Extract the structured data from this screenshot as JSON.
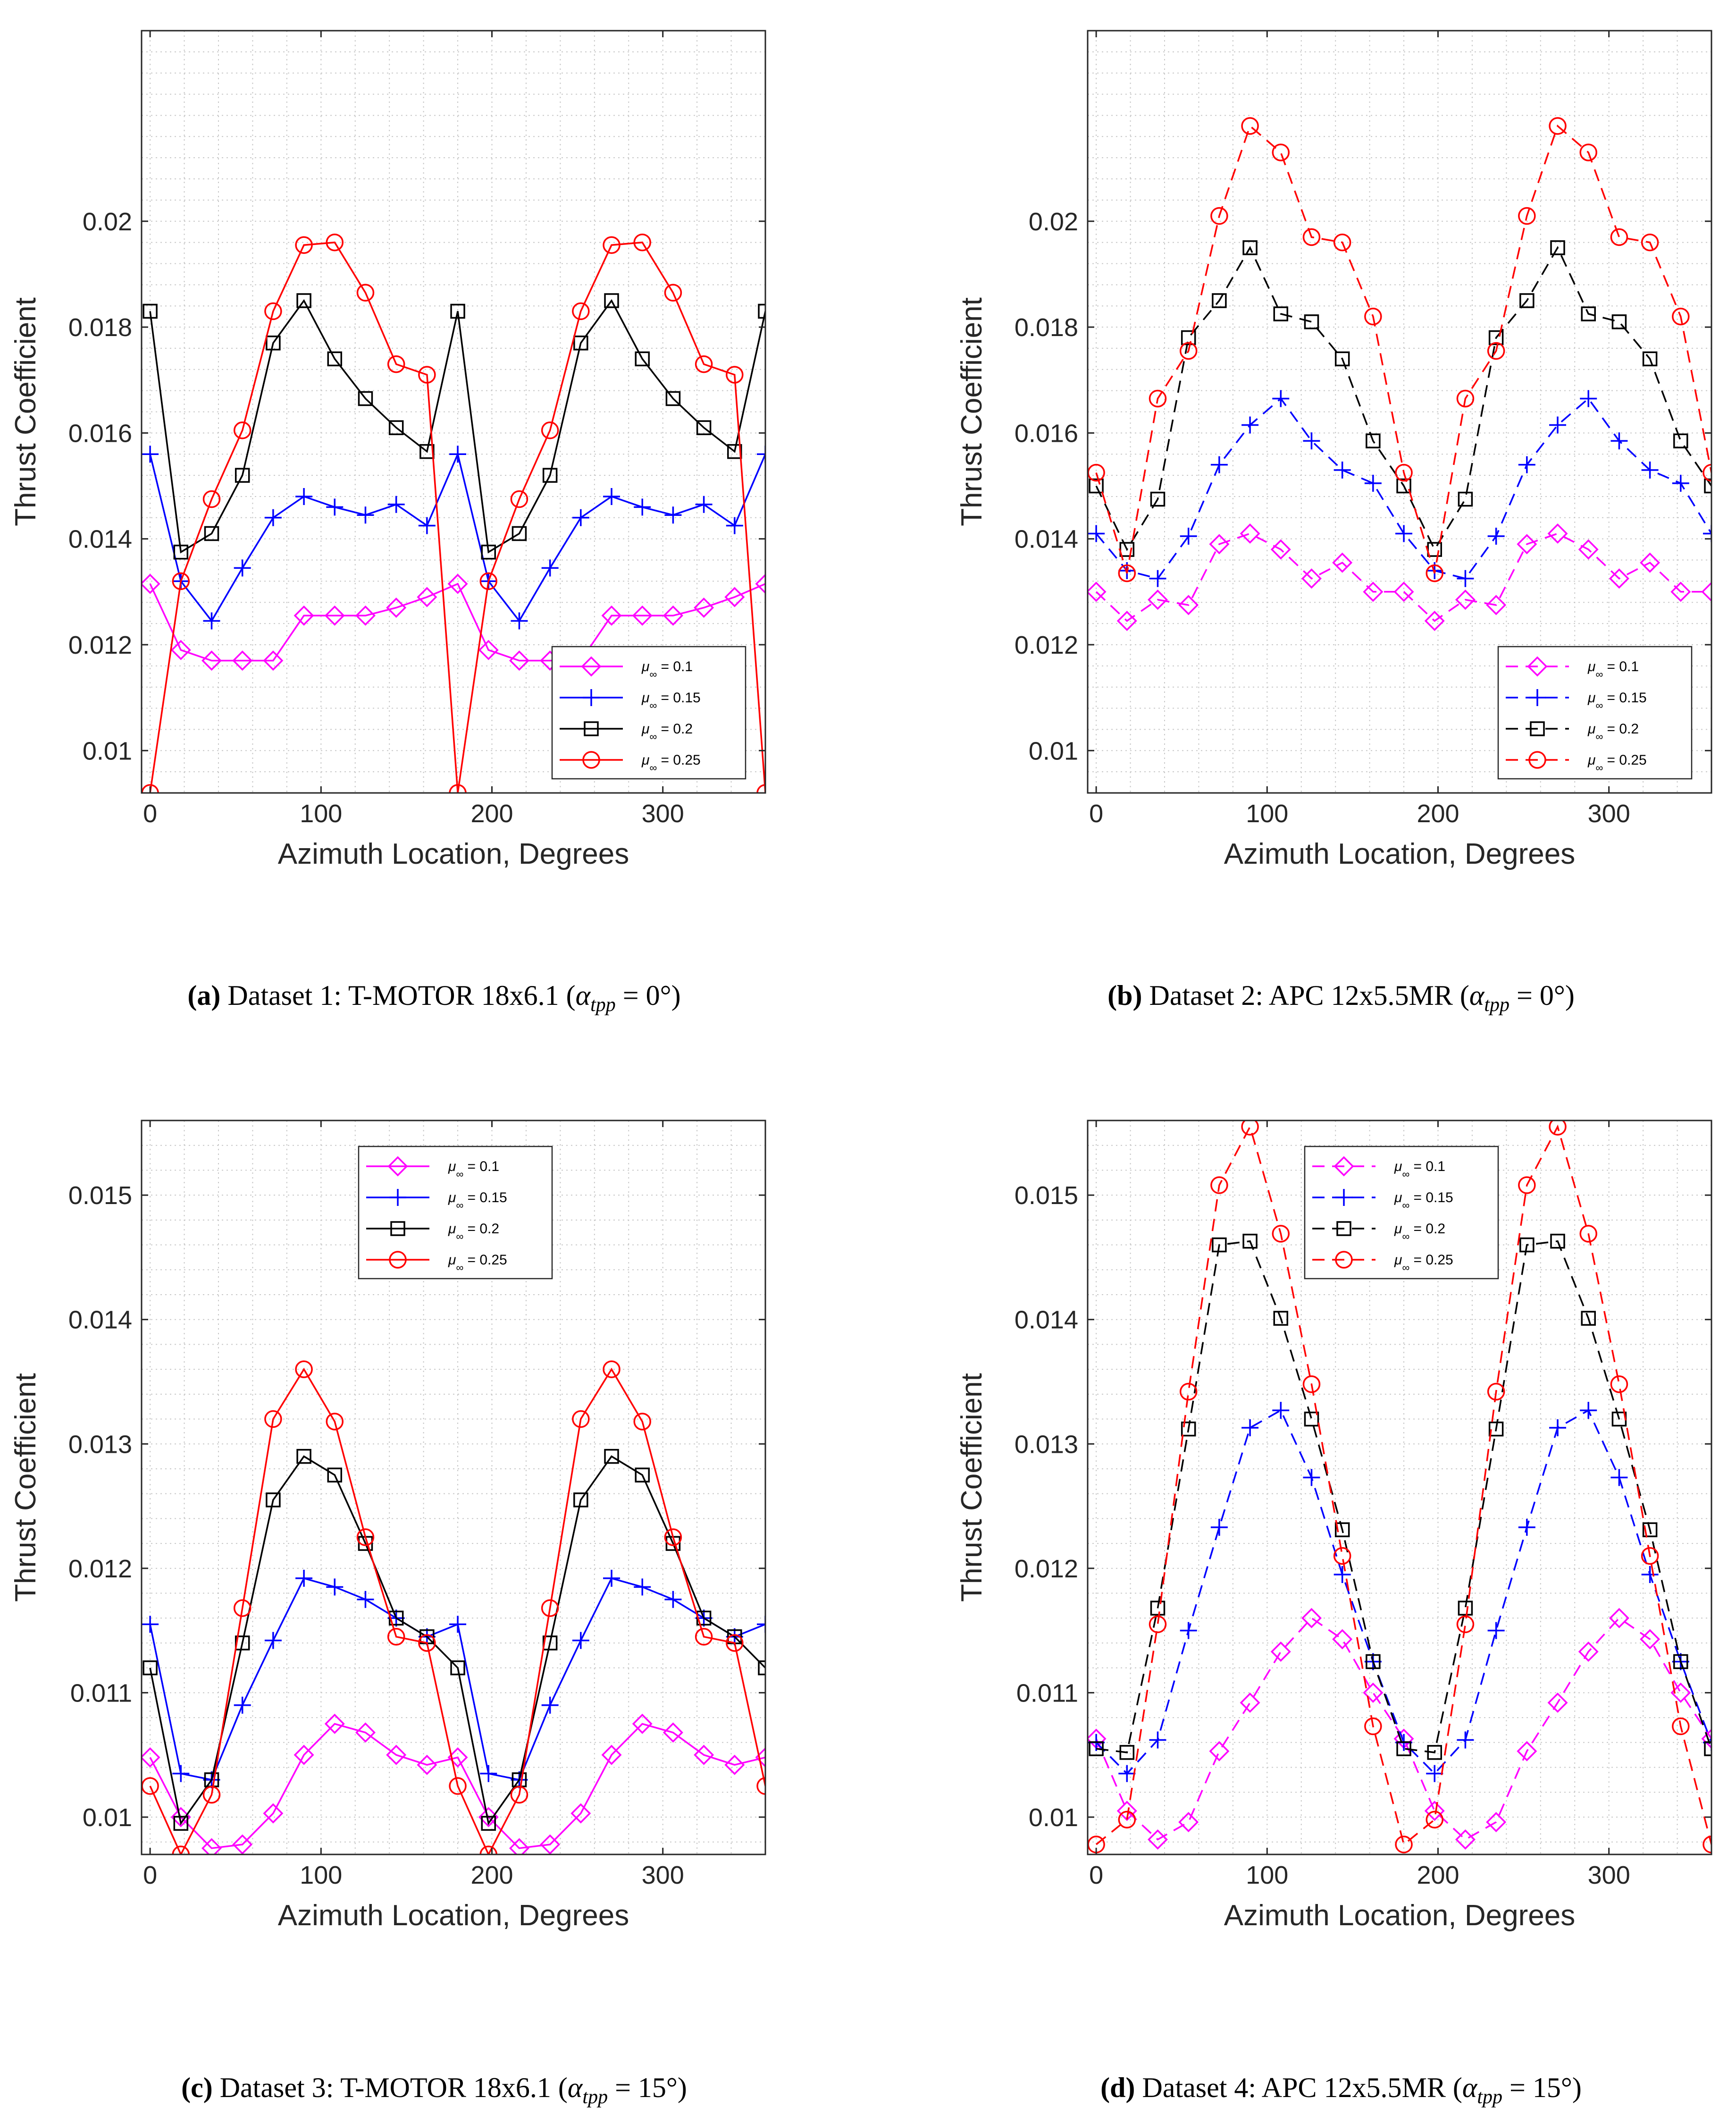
{
  "chart_data": [
    {
      "type": "line",
      "panel_id": "a",
      "line_style": "solid",
      "title": "",
      "xlabel": "Azimuth Location, Degrees",
      "ylabel": "Thrust Coefficient",
      "xlim": [
        -5,
        360
      ],
      "ylim": [
        0.0092,
        0.0236
      ],
      "xticks": [
        0,
        100,
        200,
        300
      ],
      "yticks": [
        0.01,
        0.012,
        0.014,
        0.016,
        0.018,
        0.02
      ],
      "ytick_labels": [
        "0.01",
        "0.012",
        "0.014",
        "0.016",
        "0.018",
        "0.02"
      ],
      "grid": true,
      "legend_position": "bottom-right",
      "x": [
        0,
        18,
        36,
        54,
        72,
        90,
        108,
        126,
        144,
        162,
        180,
        198,
        216,
        234,
        252,
        270,
        288,
        306,
        324,
        342,
        360
      ],
      "series": [
        {
          "name": "μ∞ = 0.1",
          "label_prefix": "μ",
          "label_sub": "∞",
          "label_suffix": " = 0.1",
          "color": "#ff00ff",
          "marker": "diamond",
          "values": [
            0.01315,
            0.0119,
            0.0117,
            0.0117,
            0.0117,
            0.01255,
            0.01255,
            0.01255,
            0.0127,
            0.0129,
            0.01315,
            0.0119,
            0.0117,
            0.0117,
            0.0117,
            0.01255,
            0.01255,
            0.01255,
            0.0127,
            0.0129,
            0.01315
          ]
        },
        {
          "name": "μ∞ = 0.15",
          "label_prefix": "μ",
          "label_sub": "∞",
          "label_suffix": " = 0.15",
          "color": "#0000ff",
          "marker": "plus",
          "values": [
            0.0156,
            0.0132,
            0.01245,
            0.01345,
            0.0144,
            0.0148,
            0.0146,
            0.01445,
            0.01465,
            0.01425,
            0.0156,
            0.0132,
            0.01245,
            0.01345,
            0.0144,
            0.0148,
            0.0146,
            0.01445,
            0.01465,
            0.01425,
            0.0156
          ]
        },
        {
          "name": "μ∞ = 0.2",
          "label_prefix": "μ",
          "label_sub": "∞",
          "label_suffix": " = 0.2",
          "color": "#000000",
          "marker": "square",
          "values": [
            0.0183,
            0.01375,
            0.0141,
            0.0152,
            0.0177,
            0.0185,
            0.0174,
            0.01665,
            0.0161,
            0.01565,
            0.0183,
            0.01375,
            0.0141,
            0.0152,
            0.0177,
            0.0185,
            0.0174,
            0.01665,
            0.0161,
            0.01565,
            0.0183
          ]
        },
        {
          "name": "μ∞ = 0.25",
          "label_prefix": "μ",
          "label_sub": "∞",
          "label_suffix": " = 0.25",
          "color": "#ff0000",
          "marker": "circle",
          "values": [
            0.0092,
            0.0132,
            0.01475,
            0.01605,
            0.0183,
            0.01955,
            0.0196,
            0.01865,
            0.0173,
            0.0171,
            0.0092,
            0.0132,
            0.01475,
            0.01605,
            0.0183,
            0.01955,
            0.0196,
            0.01865,
            0.0173,
            0.0171,
            0.0092
          ]
        }
      ],
      "caption": {
        "label": "(a)",
        "text": " Dataset 1: T-MOTOR 18x6.1 (",
        "alpha": "α",
        "sub": "tpp",
        "rest": " = 0°)"
      }
    },
    {
      "type": "line",
      "panel_id": "b",
      "line_style": "dashed",
      "title": "",
      "xlabel": "Azimuth Location, Degrees",
      "ylabel": "Thrust Coefficient",
      "xlim": [
        -5,
        360
      ],
      "ylim": [
        0.0092,
        0.0236
      ],
      "xticks": [
        0,
        100,
        200,
        300
      ],
      "yticks": [
        0.01,
        0.012,
        0.014,
        0.016,
        0.018,
        0.02
      ],
      "ytick_labels": [
        "0.01",
        "0.012",
        "0.014",
        "0.016",
        "0.018",
        "0.02"
      ],
      "grid": true,
      "legend_position": "bottom-right",
      "x": [
        0,
        18,
        36,
        54,
        72,
        90,
        108,
        126,
        144,
        162,
        180,
        198,
        216,
        234,
        252,
        270,
        288,
        306,
        324,
        342,
        360
      ],
      "series": [
        {
          "name": "μ∞ = 0.1",
          "label_prefix": "μ",
          "label_sub": "∞",
          "label_suffix": " = 0.1",
          "color": "#ff00ff",
          "marker": "diamond",
          "values": [
            0.013,
            0.01245,
            0.01285,
            0.01275,
            0.0139,
            0.0141,
            0.0138,
            0.01325,
            0.01355,
            0.013,
            0.013,
            0.01245,
            0.01285,
            0.01275,
            0.0139,
            0.0141,
            0.0138,
            0.01325,
            0.01355,
            0.013,
            0.013
          ]
        },
        {
          "name": "μ∞ = 0.15",
          "label_prefix": "μ",
          "label_sub": "∞",
          "label_suffix": " = 0.15",
          "color": "#0000ff",
          "marker": "plus",
          "values": [
            0.0141,
            0.0134,
            0.01325,
            0.01405,
            0.0154,
            0.01615,
            0.01665,
            0.01585,
            0.0153,
            0.01505,
            0.0141,
            0.0134,
            0.01325,
            0.01405,
            0.0154,
            0.01615,
            0.01665,
            0.01585,
            0.0153,
            0.01505,
            0.0141
          ]
        },
        {
          "name": "μ∞ = 0.2",
          "label_prefix": "μ",
          "label_sub": "∞",
          "label_suffix": " = 0.2",
          "color": "#000000",
          "marker": "square",
          "values": [
            0.015,
            0.0138,
            0.01475,
            0.0178,
            0.0185,
            0.0195,
            0.01825,
            0.0181,
            0.0174,
            0.01585,
            0.015,
            0.0138,
            0.01475,
            0.0178,
            0.0185,
            0.0195,
            0.01825,
            0.0181,
            0.0174,
            0.01585,
            0.015
          ]
        },
        {
          "name": "μ∞ = 0.25",
          "label_prefix": "μ",
          "label_sub": "∞",
          "label_suffix": " = 0.25",
          "color": "#ff0000",
          "marker": "circle",
          "values": [
            0.01525,
            0.01335,
            0.01665,
            0.01755,
            0.0201,
            0.0218,
            0.0213,
            0.0197,
            0.0196,
            0.0182,
            0.01525,
            0.01335,
            0.01665,
            0.01755,
            0.0201,
            0.0218,
            0.0213,
            0.0197,
            0.0196,
            0.0182,
            0.01525
          ]
        }
      ],
      "caption": {
        "label": "(b)",
        "text": " Dataset 2: APC 12x5.5MR (",
        "alpha": "α",
        "sub": "tpp",
        "rest": " = 0°)"
      }
    },
    {
      "type": "line",
      "panel_id": "c",
      "line_style": "solid",
      "title": "",
      "xlabel": "Azimuth Location, Degrees",
      "ylabel": "Thrust Coefficient",
      "xlim": [
        -5,
        360
      ],
      "ylim": [
        0.0097,
        0.0156
      ],
      "xticks": [
        0,
        100,
        200,
        300
      ],
      "yticks": [
        0.01,
        0.011,
        0.012,
        0.013,
        0.014,
        0.015
      ],
      "ytick_labels": [
        "0.01",
        "0.011",
        "0.012",
        "0.013",
        "0.014",
        "0.015"
      ],
      "grid": true,
      "legend_position": "top-center",
      "x": [
        0,
        18,
        36,
        54,
        72,
        90,
        108,
        126,
        144,
        162,
        180,
        198,
        216,
        234,
        252,
        270,
        288,
        306,
        324,
        342,
        360
      ],
      "series": [
        {
          "name": "μ∞ = 0.1",
          "label_prefix": "μ",
          "label_sub": "∞",
          "label_suffix": " = 0.1",
          "color": "#ff00ff",
          "marker": "diamond",
          "values": [
            0.01048,
            0.01,
            0.00975,
            0.00978,
            0.01003,
            0.0105,
            0.01075,
            0.01068,
            0.0105,
            0.01042,
            0.01048,
            0.01,
            0.00975,
            0.00978,
            0.01003,
            0.0105,
            0.01075,
            0.01068,
            0.0105,
            0.01042,
            0.01048
          ]
        },
        {
          "name": "μ∞ = 0.15",
          "label_prefix": "μ",
          "label_sub": "∞",
          "label_suffix": " = 0.15",
          "color": "#0000ff",
          "marker": "plus",
          "values": [
            0.01155,
            0.01035,
            0.0103,
            0.0109,
            0.01142,
            0.01192,
            0.01185,
            0.01175,
            0.0116,
            0.01145,
            0.01155,
            0.01035,
            0.0103,
            0.0109,
            0.01142,
            0.01192,
            0.01185,
            0.01175,
            0.0116,
            0.01145,
            0.01155
          ]
        },
        {
          "name": "μ∞ = 0.2",
          "label_prefix": "μ",
          "label_sub": "∞",
          "label_suffix": " = 0.2",
          "color": "#000000",
          "marker": "square",
          "values": [
            0.0112,
            0.00995,
            0.0103,
            0.0114,
            0.01255,
            0.0129,
            0.01275,
            0.0122,
            0.0116,
            0.01145,
            0.0112,
            0.00995,
            0.0103,
            0.0114,
            0.01255,
            0.0129,
            0.01275,
            0.0122,
            0.0116,
            0.01145,
            0.0112
          ]
        },
        {
          "name": "μ∞ = 0.25",
          "label_prefix": "μ",
          "label_sub": "∞",
          "label_suffix": " = 0.25",
          "color": "#ff0000",
          "marker": "circle",
          "values": [
            0.01025,
            0.0097,
            0.01018,
            0.01168,
            0.0132,
            0.0136,
            0.01318,
            0.01225,
            0.01145,
            0.0114,
            0.01025,
            0.0097,
            0.01018,
            0.01168,
            0.0132,
            0.0136,
            0.01318,
            0.01225,
            0.01145,
            0.0114,
            0.01025
          ]
        }
      ],
      "caption": {
        "label": "(c)",
        "text": " Dataset 3: T-MOTOR 18x6.1 (",
        "alpha": "α",
        "sub": "tpp",
        "rest": " = 15°)"
      }
    },
    {
      "type": "line",
      "panel_id": "d",
      "line_style": "dashed",
      "title": "",
      "xlabel": "Azimuth Location, Degrees",
      "ylabel": "Thrust Coefficient",
      "xlim": [
        -5,
        360
      ],
      "ylim": [
        0.0097,
        0.0156
      ],
      "xticks": [
        0,
        100,
        200,
        300
      ],
      "yticks": [
        0.01,
        0.011,
        0.012,
        0.013,
        0.014,
        0.015
      ],
      "ytick_labels": [
        "0.01",
        "0.011",
        "0.012",
        "0.013",
        "0.014",
        "0.015"
      ],
      "grid": true,
      "legend_position": "top-center",
      "x": [
        0,
        18,
        36,
        54,
        72,
        90,
        108,
        126,
        144,
        162,
        180,
        198,
        216,
        234,
        252,
        270,
        288,
        306,
        324,
        342,
        360
      ],
      "series": [
        {
          "name": "μ∞ = 0.1",
          "label_prefix": "μ",
          "label_sub": "∞",
          "label_suffix": " = 0.1",
          "color": "#ff00ff",
          "marker": "diamond",
          "values": [
            0.01063,
            0.01005,
            0.00982,
            0.00996,
            0.01053,
            0.01092,
            0.01133,
            0.0116,
            0.01143,
            0.011,
            0.01063,
            0.01005,
            0.00982,
            0.00996,
            0.01053,
            0.01092,
            0.01133,
            0.0116,
            0.01143,
            0.011,
            0.01063
          ]
        },
        {
          "name": "μ∞ = 0.15",
          "label_prefix": "μ",
          "label_sub": "∞",
          "label_suffix": " = 0.15",
          "color": "#0000ff",
          "marker": "plus",
          "values": [
            0.0106,
            0.01035,
            0.01062,
            0.0115,
            0.01233,
            0.01313,
            0.01327,
            0.01273,
            0.01195,
            0.01125,
            0.0106,
            0.01035,
            0.01062,
            0.0115,
            0.01233,
            0.01313,
            0.01327,
            0.01273,
            0.01195,
            0.01125,
            0.0106
          ]
        },
        {
          "name": "μ∞ = 0.2",
          "label_prefix": "μ",
          "label_sub": "∞",
          "label_suffix": " = 0.2",
          "color": "#000000",
          "marker": "square",
          "values": [
            0.01055,
            0.01052,
            0.01168,
            0.01312,
            0.0146,
            0.01463,
            0.01401,
            0.0132,
            0.01231,
            0.01125,
            0.01055,
            0.01052,
            0.01168,
            0.01312,
            0.0146,
            0.01463,
            0.01401,
            0.0132,
            0.01231,
            0.01125,
            0.01055
          ]
        },
        {
          "name": "μ∞ = 0.25",
          "label_prefix": "μ",
          "label_sub": "∞",
          "label_suffix": " = 0.25",
          "color": "#ff0000",
          "marker": "circle",
          "values": [
            0.00978,
            0.00998,
            0.01155,
            0.01342,
            0.01508,
            0.01555,
            0.01469,
            0.01348,
            0.0121,
            0.01073,
            0.00978,
            0.00998,
            0.01155,
            0.01342,
            0.01508,
            0.01555,
            0.01469,
            0.01348,
            0.0121,
            0.01073,
            0.00978
          ]
        }
      ],
      "caption": {
        "label": "(d)",
        "text": " Dataset 4: APC 12x5.5MR (",
        "alpha": "α",
        "sub": "tpp",
        "rest": " = 15°)"
      }
    }
  ]
}
